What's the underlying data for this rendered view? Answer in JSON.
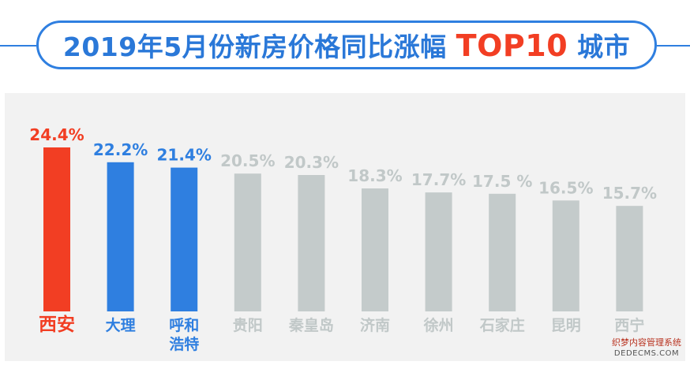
{
  "header": {
    "title_prefix": "2019年5月份新房价格同比涨幅",
    "title_highlight": "TOP10",
    "title_suffix": "城市"
  },
  "chart_data": {
    "type": "bar",
    "title": "2019年5月份新房价格同比涨幅 TOP10 城市",
    "categories": [
      "西安",
      "大理",
      "呼和浩特",
      "贵阳",
      "秦皇岛",
      "济南",
      "徐州",
      "石家庄",
      "昆明",
      "西宁"
    ],
    "category_lines": [
      [
        "西安"
      ],
      [
        "大理"
      ],
      [
        "呼和",
        "浩特"
      ],
      [
        "贵阳"
      ],
      [
        "秦皇岛"
      ],
      [
        "济南"
      ],
      [
        "徐州"
      ],
      [
        "石家庄"
      ],
      [
        "昆明"
      ],
      [
        "西宁"
      ]
    ],
    "values": [
      24.4,
      22.2,
      21.4,
      20.5,
      20.3,
      18.3,
      17.7,
      17.5,
      16.5,
      15.7
    ],
    "value_labels": [
      "24.4%",
      "22.2%",
      "21.4%",
      "20.5%",
      "20.3%",
      "18.3%",
      "17.7%",
      "17.5 %",
      "16.5%",
      "15.7%"
    ],
    "unit": "%",
    "xlabel": "",
    "ylabel": "",
    "grid": false,
    "legend": "none",
    "bar_colors": [
      "#f23e23",
      "#2f7fe0",
      "#2f7fe0",
      "#c4cbcb",
      "#c4cbcb",
      "#c4cbcb",
      "#c4cbcb",
      "#c4cbcb",
      "#c4cbcb",
      "#c4cbcb"
    ],
    "label_colors": [
      "#f23e23",
      "#2f7fe0",
      "#2f7fe0",
      "#c1c8c8",
      "#c1c8c8",
      "#c1c8c8",
      "#c1c8c8",
      "#c1c8c8",
      "#c1c8c8",
      "#c1c8c8"
    ]
  },
  "watermark": {
    "line1": "织梦内容管理系统",
    "line2": "DEDECMS.COM"
  }
}
